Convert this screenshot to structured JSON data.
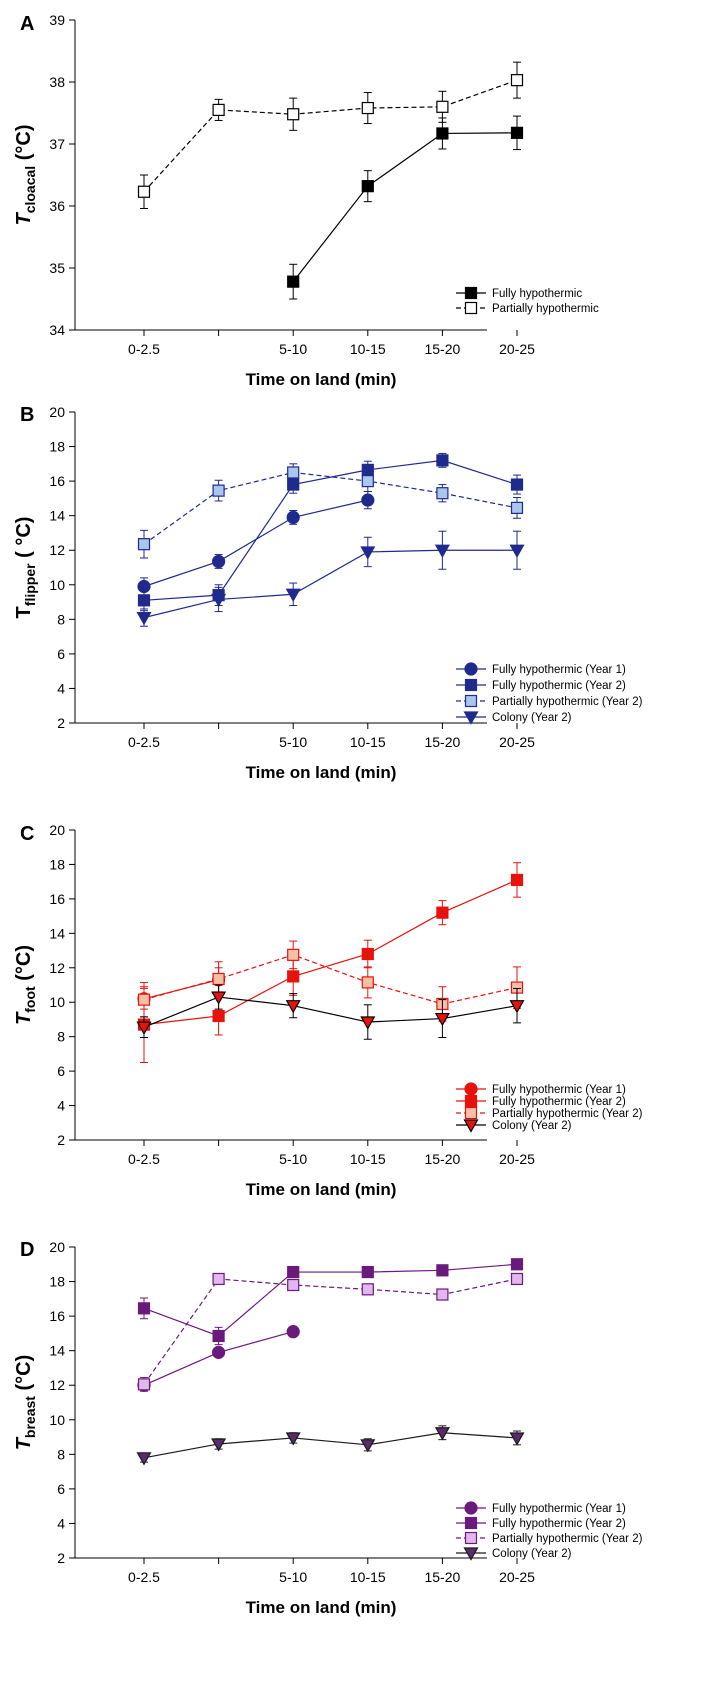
{
  "chart_data": [
    {
      "type": "line",
      "panel_label": "A",
      "ylabel_main": "T",
      "ylabel_sub": "cloacal",
      "ylabel_unit": " (°C)",
      "ylabel_italic": true,
      "xlabel": "Time on land (min)",
      "categories": [
        "0-2.5",
        "",
        "5-10",
        "10-15",
        "15-20",
        "20-25"
      ],
      "ylim": [
        34,
        39
      ],
      "yticks": [
        34,
        35,
        36,
        37,
        38,
        39
      ],
      "series": [
        {
          "name": "Fully hypothermic",
          "color": "#000000",
          "fill": "#000000",
          "marker": "square",
          "dashed": false,
          "x": [
            2,
            3,
            4,
            5
          ],
          "y": [
            34.78,
            36.32,
            37.17,
            37.18
          ],
          "err": [
            0.28,
            0.25,
            0.25,
            0.27
          ]
        },
        {
          "name": "Partially hypothermic",
          "color": "#000000",
          "fill": "#ffffff",
          "marker": "square",
          "dashed": true,
          "x": [
            0,
            1,
            2,
            3,
            4,
            5
          ],
          "y": [
            36.23,
            37.55,
            37.48,
            37.58,
            37.6,
            38.03
          ],
          "err": [
            0.27,
            0.17,
            0.26,
            0.25,
            0.25,
            0.29
          ]
        }
      ]
    },
    {
      "type": "line",
      "panel_label": "B",
      "ylabel_main": "T",
      "ylabel_sub": "flipper",
      "ylabel_unit": " ( °C)",
      "ylabel_italic": false,
      "xlabel": "Time on land (min)",
      "categories": [
        "0-2.5",
        "",
        "5-10",
        "10-15",
        "15-20",
        "20-25"
      ],
      "ylim": [
        2,
        20
      ],
      "yticks": [
        2,
        4,
        6,
        8,
        10,
        12,
        14,
        16,
        18,
        20
      ],
      "series": [
        {
          "name": "Fully hypothermic (Year 1)",
          "color": "#1f2a8c",
          "fill": "#1f2a8c",
          "marker": "circle",
          "dashed": false,
          "x": [
            0,
            1,
            2,
            3
          ],
          "y": [
            9.9,
            11.35,
            13.9,
            14.9
          ],
          "err": [
            0.5,
            0.4,
            0.4,
            0.5
          ]
        },
        {
          "name": "Fully hypothermic (Year 2)",
          "color": "#1f2a8c",
          "fill": "#1f2a8c",
          "marker": "square",
          "dashed": false,
          "x": [
            0,
            1,
            2,
            3,
            4,
            5
          ],
          "y": [
            9.1,
            9.4,
            15.8,
            16.65,
            17.2,
            15.8
          ],
          "err": [
            0.6,
            0.6,
            0.5,
            0.5,
            0.4,
            0.55
          ]
        },
        {
          "name": "Partially hypothermic (Year 2)",
          "color": "#1f2a8c",
          "fill": "#a9c6ee",
          "marker": "square",
          "dashed": true,
          "x": [
            0,
            1,
            2,
            3,
            4,
            5
          ],
          "y": [
            12.35,
            15.45,
            16.5,
            16.0,
            15.3,
            14.45
          ],
          "err": [
            0.8,
            0.6,
            0.5,
            0.6,
            0.5,
            0.6
          ]
        },
        {
          "name": "Colony (Year 2)",
          "color": "#1f2a8c",
          "fill": "#1f2a8c",
          "marker": "triangle-down",
          "dashed": false,
          "x": [
            0,
            1,
            2,
            3,
            4,
            5
          ],
          "y": [
            8.1,
            9.15,
            9.45,
            11.9,
            12.0,
            12.0
          ],
          "err": [
            0.5,
            0.7,
            0.65,
            0.85,
            1.1,
            1.1
          ]
        }
      ]
    },
    {
      "type": "line",
      "panel_label": "C",
      "ylabel_main": "T",
      "ylabel_sub": "foot",
      "ylabel_unit": " (°C)",
      "ylabel_italic": true,
      "xlabel": "Time on land (min)",
      "categories": [
        "0-2.5",
        "",
        "5-10",
        "10-15",
        "15-20",
        "20-25"
      ],
      "ylim": [
        2,
        20
      ],
      "yticks": [
        2,
        4,
        6,
        8,
        10,
        12,
        14,
        16,
        18,
        20
      ],
      "series": [
        {
          "name": "Fully hypothermic (Year 1)",
          "color": "#e8120c",
          "fill": "#e8120c",
          "marker": "circle",
          "dashed": false,
          "x": [
            0,
            1
          ],
          "y": [
            10.2,
            11.3
          ],
          "err": [
            0.6,
            0.7
          ]
        },
        {
          "name": "Fully hypothermic (Year 2)",
          "color": "#e8120c",
          "fill": "#e8120c",
          "marker": "square",
          "dashed": false,
          "x": [
            0,
            1,
            2,
            3,
            4,
            5
          ],
          "y": [
            8.7,
            9.2,
            11.5,
            12.8,
            15.2,
            17.1
          ],
          "err": [
            2.2,
            1.1,
            1.1,
            0.8,
            0.7,
            1.0
          ]
        },
        {
          "name": "Partially hypothermic (Year 2)",
          "color": "#e8120c",
          "fill": "#f9c0a8",
          "marker": "square",
          "dashed": true,
          "x": [
            0,
            1,
            2,
            3,
            4,
            5
          ],
          "y": [
            10.15,
            11.35,
            12.75,
            11.15,
            9.9,
            10.85
          ],
          "err": [
            1.0,
            1.0,
            0.8,
            0.9,
            1.0,
            1.2
          ]
        },
        {
          "name": "Colony (Year 2)",
          "color": "#000000",
          "fill": "#e8120c",
          "marker": "triangle-down",
          "dashed": false,
          "x": [
            0,
            1,
            2,
            3,
            4,
            5
          ],
          "y": [
            8.55,
            10.3,
            9.8,
            8.85,
            9.05,
            9.8
          ],
          "err": [
            0.6,
            0.7,
            0.7,
            1.0,
            1.1,
            1.0
          ]
        }
      ]
    },
    {
      "type": "line",
      "panel_label": "D",
      "ylabel_main": "T",
      "ylabel_sub": "breast",
      "ylabel_unit": " (°C)",
      "ylabel_italic": true,
      "xlabel": "Time on land (min)",
      "categories": [
        "0-2.5",
        "",
        "5-10",
        "10-15",
        "15-20",
        "20-25"
      ],
      "ylim": [
        2,
        20
      ],
      "yticks": [
        2,
        4,
        6,
        8,
        10,
        12,
        14,
        16,
        18,
        20
      ],
      "series": [
        {
          "name": "Fully hypothermic (Year 1)",
          "color": "#6a1a7a",
          "fill": "#6a1a7a",
          "marker": "circle",
          "dashed": false,
          "x": [
            0,
            1,
            2
          ],
          "y": [
            12.0,
            13.9,
            15.1
          ],
          "err": [
            0.2,
            0.2,
            0.2
          ]
        },
        {
          "name": "Fully hypothermic (Year 2)",
          "color": "#6a1a7a",
          "fill": "#6a1a7a",
          "marker": "square",
          "dashed": false,
          "x": [
            0,
            1,
            2,
            3,
            4,
            5
          ],
          "y": [
            16.45,
            14.85,
            18.55,
            18.55,
            18.65,
            19.0
          ],
          "err": [
            0.6,
            0.5,
            0.3,
            0.2,
            0.2,
            0.3
          ]
        },
        {
          "name": "Partially hypothermic (Year 2)",
          "color": "#6a1a7a",
          "fill": "#e2b6ef",
          "marker": "square",
          "dashed": true,
          "x": [
            0,
            1,
            2,
            3,
            4,
            5
          ],
          "y": [
            12.05,
            18.15,
            17.8,
            17.55,
            17.25,
            18.15
          ],
          "err": [
            0.4,
            0.3,
            0.3,
            0.2,
            0.2,
            0.3
          ]
        },
        {
          "name": "Colony (Year 2)",
          "color": "#1a1a1a",
          "fill": "#5a2a6a",
          "marker": "triangle-down",
          "dashed": false,
          "x": [
            0,
            1,
            2,
            3,
            4,
            5
          ],
          "y": [
            7.8,
            8.6,
            8.95,
            8.55,
            9.25,
            8.95
          ],
          "err": [
            0.25,
            0.3,
            0.3,
            0.35,
            0.4,
            0.4
          ]
        }
      ]
    }
  ]
}
